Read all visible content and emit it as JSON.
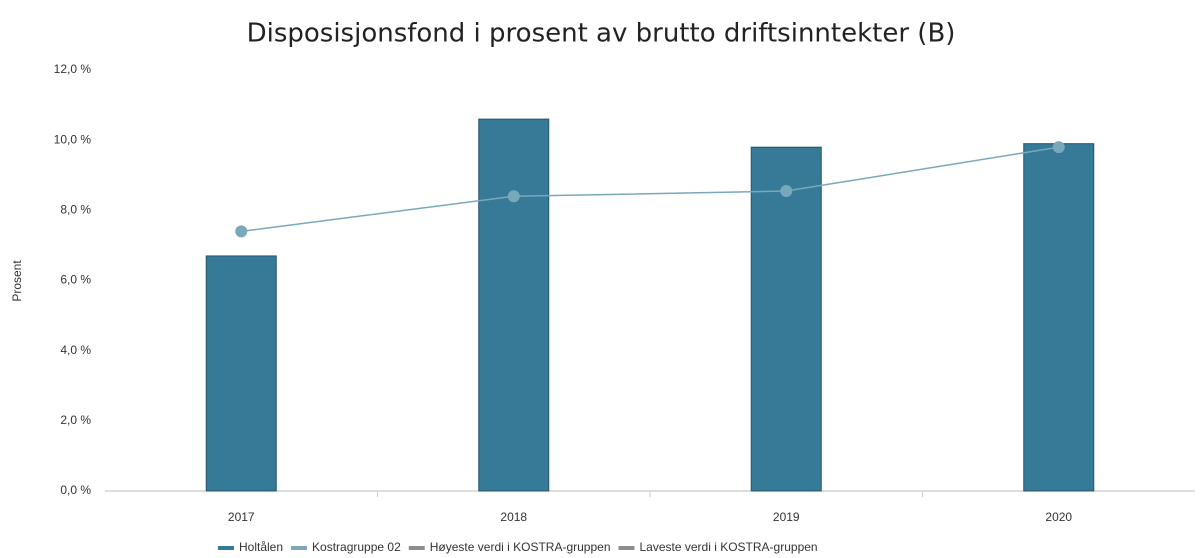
{
  "chart_data": {
    "type": "bar",
    "title": "Disposisjonsfond i prosent av brutto driftsinntekter (B)",
    "y_label": "Prosent",
    "categories": [
      "2017",
      "2018",
      "2019",
      "2020"
    ],
    "series": [
      {
        "name": "Holtålen",
        "type": "bar",
        "color": "#367a98",
        "values": [
          6.7,
          10.6,
          9.8,
          9.9
        ]
      },
      {
        "name": "Kostragruppe 02",
        "type": "line",
        "color": "#7aa8bb",
        "values": [
          7.4,
          8.4,
          8.55,
          9.8
        ]
      },
      {
        "name": "Høyeste verdi i KOSTRA-gruppen",
        "type": "line",
        "color": "#8c8c8c",
        "values": [
          null,
          null,
          null,
          null
        ]
      },
      {
        "name": "Laveste verdi i KOSTRA-gruppen",
        "type": "line",
        "color": "#8c8c8c",
        "values": [
          null,
          null,
          null,
          null
        ]
      }
    ],
    "ylim": [
      0,
      12
    ],
    "yticks": [
      {
        "value": 0,
        "label": "0,0 %"
      },
      {
        "value": 2,
        "label": "2,0 %"
      },
      {
        "value": 4,
        "label": "4,0 %"
      },
      {
        "value": 6,
        "label": "6,0 %"
      },
      {
        "value": 8,
        "label": "8,0 %"
      },
      {
        "value": 10,
        "label": "10,0 %"
      },
      {
        "value": 12,
        "label": "12,0 %"
      }
    ],
    "grid": false
  }
}
